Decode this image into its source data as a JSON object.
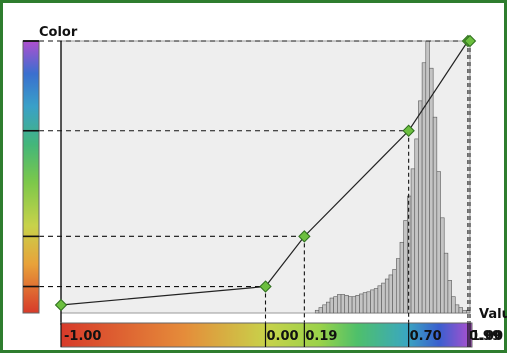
{
  "labels": {
    "color_axis": "Color",
    "value_axis": "Valu"
  },
  "colors": {
    "frame_border": "#2e7d2e",
    "histogram_bg": "#eeeeee",
    "histogram_bar": "#c4c4c4",
    "control_point": "#6cbf3f"
  },
  "value_range": [
    -1.0,
    1.0
  ],
  "control_points": [
    {
      "value": -1.0,
      "level": 0.0,
      "label": "-1.00"
    },
    {
      "value": 0.0,
      "level": 0.07,
      "label": "0.00"
    },
    {
      "value": 0.19,
      "level": 0.26,
      "label": "0.19"
    },
    {
      "value": 0.7,
      "level": 0.66,
      "label": "0.70"
    },
    {
      "value": 0.99,
      "level": 1.0,
      "label": "0.99"
    },
    {
      "value": 1.0,
      "level": 1.0,
      "label": "1.00"
    }
  ],
  "histogram": [
    0,
    0,
    0,
    0,
    0,
    0,
    0,
    0,
    0,
    0,
    0,
    0,
    0,
    0,
    0,
    0,
    0,
    0,
    0,
    0,
    0,
    0,
    0,
    0,
    0,
    0,
    0,
    0,
    0,
    0,
    0,
    0,
    0,
    0,
    0,
    0,
    0,
    0,
    0,
    0,
    0,
    0,
    0,
    0,
    0,
    0,
    0,
    0,
    0,
    0,
    0,
    0,
    0,
    0,
    0,
    0,
    0,
    0,
    0,
    0,
    0,
    0,
    0,
    0,
    0,
    0,
    0,
    0,
    0,
    0.01,
    0.02,
    0.03,
    0.04,
    0.055,
    0.06,
    0.068,
    0.068,
    0.065,
    0.06,
    0.06,
    0.065,
    0.07,
    0.075,
    0.078,
    0.085,
    0.09,
    0.1,
    0.11,
    0.125,
    0.14,
    0.16,
    0.2,
    0.26,
    0.34,
    0.43,
    0.53,
    0.64,
    0.78,
    0.92,
    1.0,
    0.9,
    0.72,
    0.52,
    0.35,
    0.22,
    0.12,
    0.06,
    0.03,
    0.02,
    0.01,
    0.01
  ]
}
